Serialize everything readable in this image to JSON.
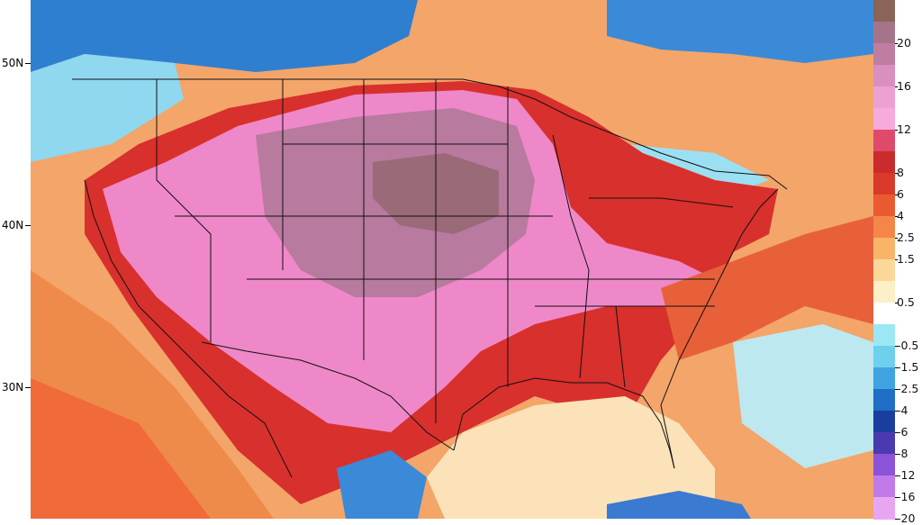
{
  "map": {
    "latitude_labels": [
      {
        "label": "50N"
      },
      {
        "label": "40N"
      },
      {
        "label": "30N"
      }
    ]
  },
  "colorbar": {
    "levels": [
      {
        "label": "",
        "color": "#8a6456"
      },
      {
        "label": "20",
        "color": "#a57488"
      },
      {
        "label": "",
        "color": "#bf7da2"
      },
      {
        "label": "16",
        "color": "#d98fbf"
      },
      {
        "label": "",
        "color": "#ee9fd3"
      },
      {
        "label": "12",
        "color": "#f6aadd"
      },
      {
        "label": "",
        "color": "#e04a6a"
      },
      {
        "label": "8",
        "color": "#c82c2c"
      },
      {
        "label": "6",
        "color": "#d93a2a"
      },
      {
        "label": "4",
        "color": "#ea5a30"
      },
      {
        "label": "2.5",
        "color": "#f4864a"
      },
      {
        "label": "1.5",
        "color": "#f8b56a"
      },
      {
        "label": "",
        "color": "#fbd89a"
      },
      {
        "label": "0.5",
        "color": "#fdf0c8"
      },
      {
        "label": "",
        "color": "#ffffff"
      },
      {
        "label": "-0.5",
        "color": "#9be8f4"
      },
      {
        "label": "-1.5",
        "color": "#6fd0ee"
      },
      {
        "label": "-2.5",
        "color": "#3fa4e0"
      },
      {
        "label": "-4",
        "color": "#1f6fc6"
      },
      {
        "label": "-6",
        "color": "#1a3e9e"
      },
      {
        "label": "-8",
        "color": "#4a3ab0"
      },
      {
        "label": "-12",
        "color": "#8c52d8"
      },
      {
        "label": "-16",
        "color": "#c27ae8"
      },
      {
        "label": "-20",
        "color": "#e8a6f2"
      }
    ]
  }
}
